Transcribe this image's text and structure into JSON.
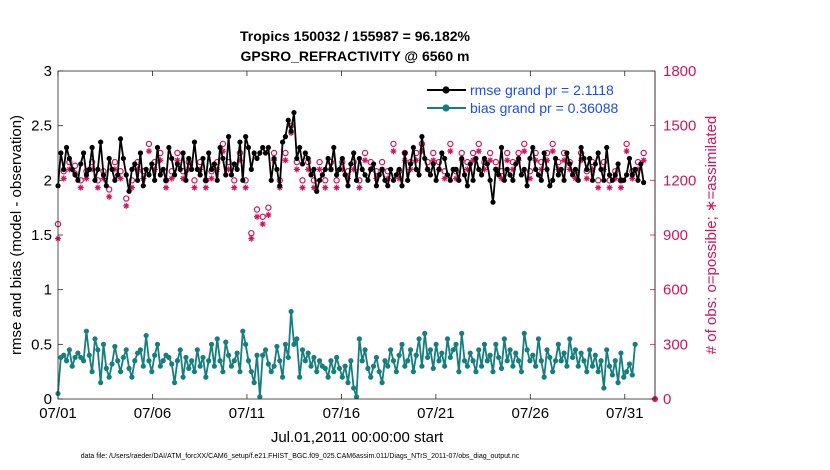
{
  "chart_data": {
    "type": "line",
    "title_line1": "Tropics 150032 / 155987 = 96.182%",
    "title_line2": "GPSRO_REFRACTIVITY @ 6560 m",
    "xlabel": "Jul.01,2011 00:00:00 start",
    "ylabel_left": "rmse and bias (model - observation)",
    "ylabel_right": "# of obs: o=possible; ∗=assimilated",
    "xlim": [
      0,
      31.6
    ],
    "ylim_left": [
      0,
      3
    ],
    "ylim_right": [
      0,
      1800
    ],
    "x_ticks": [
      0,
      5,
      10,
      15,
      20,
      25,
      30
    ],
    "x_tick_labels": [
      "07/01",
      "07/06",
      "07/11",
      "07/16",
      "07/21",
      "07/26",
      "07/31"
    ],
    "y_ticks_left": [
      0,
      0.5,
      1,
      1.5,
      2,
      2.5,
      3
    ],
    "y_tick_labels_left": [
      "0",
      "0.5",
      "1",
      "1.5",
      "2",
      "2.5",
      "3"
    ],
    "y_ticks_right": [
      0,
      300,
      600,
      900,
      1200,
      1500,
      1800
    ],
    "y_tick_labels_right": [
      "0",
      "300",
      "600",
      "900",
      "1200",
      "1500",
      "1800"
    ],
    "colors": {
      "rmse": "#000000",
      "bias": "#167e7e",
      "obs": "#d0155f"
    },
    "legend": [
      {
        "name": "rmse grand pr = 2.1118",
        "color": "#000000"
      },
      {
        "name": "bias grand pr = 0.36088",
        "color": "#167e7e"
      }
    ],
    "legend_position": "top-right",
    "rmse": [
      1.95,
      2.25,
      2.1,
      2.3,
      2.2,
      2.1,
      2.05,
      2.0,
      2.15,
      2.25,
      2.05,
      2.1,
      2.3,
      2.0,
      2.1,
      2.35,
      2.05,
      1.95,
      2.2,
      2.1,
      2.0,
      2.05,
      2.38,
      2.2,
      2.05,
      1.9,
      2.1,
      2.15,
      2.0,
      2.25,
      1.95,
      2.1,
      2.05,
      2.15,
      2.0,
      2.3,
      2.05,
      2.1,
      2.0,
      2.3,
      2.2,
      2.05,
      2.15,
      2.1,
      2.25,
      2.0,
      2.2,
      2.1,
      2.35,
      2.1,
      2.05,
      2.2,
      2.0,
      2.25,
      2.1,
      2.15,
      2.0,
      2.3,
      2.2,
      2.05,
      2.4,
      2.05,
      2.15,
      2.1,
      2.35,
      2.0,
      2.4,
      2.3,
      2.1,
      2.25,
      2.2,
      2.25,
      2.3,
      2.25,
      2.3,
      2.0,
      2.2,
      2.1,
      1.95,
      2.35,
      2.4,
      2.55,
      2.45,
      2.62,
      2.2,
      2.3,
      2.15,
      2.25,
      2.2,
      2.05,
      2.1,
      1.9,
      2.0,
      2.05,
      2.1,
      2.2,
      2.1,
      2.3,
      2.05,
      2.1,
      2.2,
      2.05,
      1.95,
      2.15,
      2.25,
      2.0,
      2.2,
      2.1,
      2.05,
      2.0,
      2.1,
      2.15,
      1.95,
      2.05,
      2.1,
      2.0,
      1.95,
      2.1,
      2.0,
      2.05,
      2.1,
      1.95,
      2.25,
      2.0,
      2.15,
      2.3,
      2.1,
      2.05,
      2.4,
      2.2,
      2.1,
      2.05,
      2.15,
      2.0,
      2.1,
      2.25,
      2.2,
      2.05,
      2.0,
      2.1,
      2.1,
      2.0,
      2.2,
      2.05,
      1.95,
      2.15,
      2.0,
      2.2,
      2.1,
      2.05,
      2.2,
      2.15,
      2.0,
      1.8,
      2.1,
      2.05,
      2.3,
      2.0,
      2.1,
      2.05,
      2.0,
      2.15,
      2.2,
      2.05,
      2.1,
      1.95,
      2.2,
      2.3,
      2.1,
      2.05,
      2.0,
      2.25,
      2.1,
      1.95,
      2.0,
      2.2,
      2.05,
      2.1,
      2.0,
      2.25,
      2.15,
      2.05,
      2.1,
      2.0,
      2.3,
      2.2,
      2.1,
      2.2,
      2.0,
      2.15,
      2.25,
      2.1,
      2.0,
      2.3,
      2.05,
      2.0,
      2.05,
      2.15,
      2.0,
      2.0,
      2.05,
      2.2,
      2.05,
      2.1,
      2.0,
      2.15,
      1.98
    ],
    "bias": [
      0.05,
      0.38,
      0.4,
      0.35,
      0.45,
      0.3,
      0.38,
      0.42,
      0.38,
      0.35,
      0.62,
      0.4,
      0.25,
      0.55,
      0.45,
      0.15,
      0.5,
      0.28,
      0.2,
      0.32,
      0.48,
      0.35,
      0.25,
      0.38,
      0.45,
      0.28,
      0.2,
      0.35,
      0.42,
      0.45,
      0.3,
      0.58,
      0.35,
      0.25,
      0.4,
      0.5,
      0.3,
      0.35,
      0.4,
      0.38,
      0.32,
      0.15,
      0.35,
      0.45,
      0.2,
      0.38,
      0.28,
      0.35,
      0.25,
      0.45,
      0.3,
      0.38,
      0.2,
      0.35,
      0.5,
      0.3,
      0.55,
      0.35,
      0.25,
      0.52,
      0.4,
      0.3,
      0.35,
      0.42,
      0.25,
      0.62,
      0.5,
      0.35,
      0.25,
      0.15,
      0.4,
      0.02,
      0.4,
      0.45,
      0.32,
      0.25,
      0.3,
      0.48,
      0.35,
      0.2,
      0.5,
      0.38,
      0.8,
      0.5,
      0.55,
      0.2,
      0.45,
      0.35,
      0.42,
      0.3,
      0.38,
      0.25,
      0.35,
      0.3,
      0.28,
      0.2,
      0.35,
      0.25,
      0.38,
      0.28,
      0.2,
      0.3,
      0.15,
      0.35,
      0.1,
      0.02,
      0.55,
      0.35,
      0.45,
      0.28,
      0.2,
      0.3,
      0.38,
      0.25,
      0.15,
      0.35,
      0.3,
      0.45,
      0.35,
      0.25,
      0.4,
      0.5,
      0.3,
      0.35,
      0.45,
      0.25,
      0.4,
      0.55,
      0.3,
      0.6,
      0.38,
      0.45,
      0.28,
      0.5,
      0.35,
      0.42,
      0.3,
      0.55,
      0.38,
      0.45,
      0.5,
      0.25,
      0.6,
      0.35,
      0.3,
      0.42,
      0.35,
      0.25,
      0.45,
      0.3,
      0.5,
      0.35,
      0.4,
      0.25,
      0.5,
      0.38,
      0.28,
      0.55,
      0.35,
      0.45,
      0.3,
      0.42,
      0.35,
      0.25,
      0.6,
      0.45,
      0.35,
      0.4,
      0.3,
      0.55,
      0.35,
      0.2,
      0.45,
      0.38,
      0.25,
      0.35,
      0.5,
      0.35,
      0.42,
      0.3,
      0.55,
      0.38,
      0.45,
      0.3,
      0.42,
      0.35,
      0.25,
      0.45,
      0.3,
      0.4,
      0.25,
      0.35,
      0.1,
      0.45,
      0.3,
      0.22,
      0.35,
      0.15,
      0.42,
      0.2,
      0.25,
      0.32,
      0.22,
      0.5
    ],
    "obs_possible": [
      960,
      1220,
      1250,
      1180,
      1300,
      1230,
      1280,
      1350,
      1200,
      1300,
      1250,
      1350,
      1300,
      1250,
      1200,
      1300,
      1250,
      1200,
      1150,
      1350,
      1300,
      1200,
      1250,
      1300,
      1100,
      1250,
      1200,
      1150,
      1300,
      1350,
      1250,
      1200,
      1400,
      1450,
      1300,
      1250,
      1350,
      1300,
      1200,
      1150,
      1250,
      1300,
      1350,
      1200,
      1250,
      1100,
      1300,
      1250,
      1200,
      1350,
      1300,
      1250,
      1200,
      1300,
      1250,
      1350,
      1300,
      1250,
      1400,
      1350,
      1300,
      1250,
      1200,
      1300,
      1350,
      1250,
      1200,
      1150,
      910,
      920,
      1040,
      900,
      1000,
      960,
      1050,
      1300,
      1350,
      1250,
      1200,
      1300,
      1350,
      1250,
      1500,
      1420,
      1300,
      1250,
      1200,
      1350,
      1300,
      1250,
      1200,
      1400,
      1300,
      1250,
      1200,
      1350,
      1300,
      1250,
      1200,
      1350,
      1300,
      1400,
      1250,
      1350,
      1300,
      1250,
      1200,
      1300,
      1350,
      1250,
      1300,
      1350,
      1250,
      1200,
      1300,
      1350,
      1250,
      1300,
      1400,
      1350,
      1250,
      1300,
      1350,
      1400,
      1300,
      1250,
      1350,
      1300,
      1400,
      1350,
      1300,
      1250,
      1350,
      1400,
      1300,
      1350,
      1250,
      1300,
      1400,
      1350,
      1250,
      1300,
      1350,
      1400,
      1300,
      1250,
      1350,
      1300,
      1400,
      1350,
      1300,
      1250,
      1350,
      1400,
      1300,
      1350,
      1250,
      1300,
      1350,
      1400,
      1300,
      1250,
      1350,
      1300,
      1400,
      1350,
      1250,
      1300,
      1350,
      1400,
      1300,
      1250,
      1350,
      1300,
      1400,
      1350,
      1300,
      1250,
      1350,
      1400,
      1300,
      1350,
      1250,
      1300,
      1350,
      1300,
      1250,
      1350,
      1300,
      1250,
      1200,
      1350,
      1300,
      1250,
      1200,
      1300,
      1250,
      1300,
      1200,
      1350,
      1400,
      1300,
      1250,
      1200,
      1300,
      1250,
      1350,
      1400
    ],
    "obs_assimilated": [
      880,
      1180,
      1210,
      1140,
      1260,
      1190,
      1240,
      1310,
      1160,
      1260,
      1210,
      1310,
      1260,
      1210,
      1160,
      1260,
      1210,
      1160,
      1110,
      1310,
      1260,
      1160,
      1210,
      1260,
      1060,
      1210,
      1160,
      1110,
      1260,
      1310,
      1210,
      1160,
      1360,
      1410,
      1260,
      1210,
      1310,
      1260,
      1160,
      1110,
      1210,
      1260,
      1310,
      1160,
      1210,
      1060,
      1260,
      1210,
      1160,
      1310,
      1260,
      1210,
      1160,
      1260,
      1210,
      1310,
      1260,
      1210,
      1360,
      1310,
      1260,
      1210,
      1160,
      1260,
      1310,
      1210,
      1160,
      1110,
      880,
      890,
      1000,
      870,
      960,
      920,
      1010,
      1260,
      1310,
      1210,
      1160,
      1260,
      1310,
      1210,
      1460,
      1380,
      1260,
      1210,
      1160,
      1310,
      1260,
      1210,
      1160,
      1360,
      1260,
      1210,
      1160,
      1310,
      1260,
      1210,
      1160,
      1310,
      1260,
      1360,
      1210,
      1310,
      1260,
      1210,
      1160,
      1260,
      1310,
      1210,
      1260,
      1310,
      1210,
      1160,
      1260,
      1310,
      1210,
      1260,
      1360,
      1310,
      1210,
      1260,
      1310,
      1360,
      1260,
      1210,
      1310,
      1260,
      1360,
      1310,
      1260,
      1210,
      1310,
      1360,
      1260,
      1310,
      1210,
      1260,
      1360,
      1310,
      1210,
      1260,
      1310,
      1360,
      1260,
      1210,
      1310,
      1260,
      1360,
      1310,
      1260,
      1210,
      1310,
      1360,
      1260,
      1310,
      1210,
      1260,
      1310,
      1360,
      1260,
      1210,
      1310,
      1260,
      1360,
      1310,
      1210,
      1260,
      1310,
      1360,
      1260,
      1210,
      1310,
      1260,
      1360,
      1310,
      1260,
      1210,
      1310,
      1360,
      1260,
      1310,
      1210,
      1260,
      1310,
      1260,
      1210,
      1310,
      1260,
      1210,
      1160,
      1310,
      1260,
      1210,
      1160,
      1260,
      1210,
      1260,
      1160,
      1310,
      1360,
      1260,
      1210,
      1160,
      1260,
      1210,
      1310,
      1360
    ]
  },
  "footnote": "data file: /Users/raeder/DAI/ATM_forcXX/CAM6_setup/f.e21.FHIST_BGC.f09_025.CAM6assim.011/Diags_NTrS_2011-07/obs_diag_output.nc"
}
